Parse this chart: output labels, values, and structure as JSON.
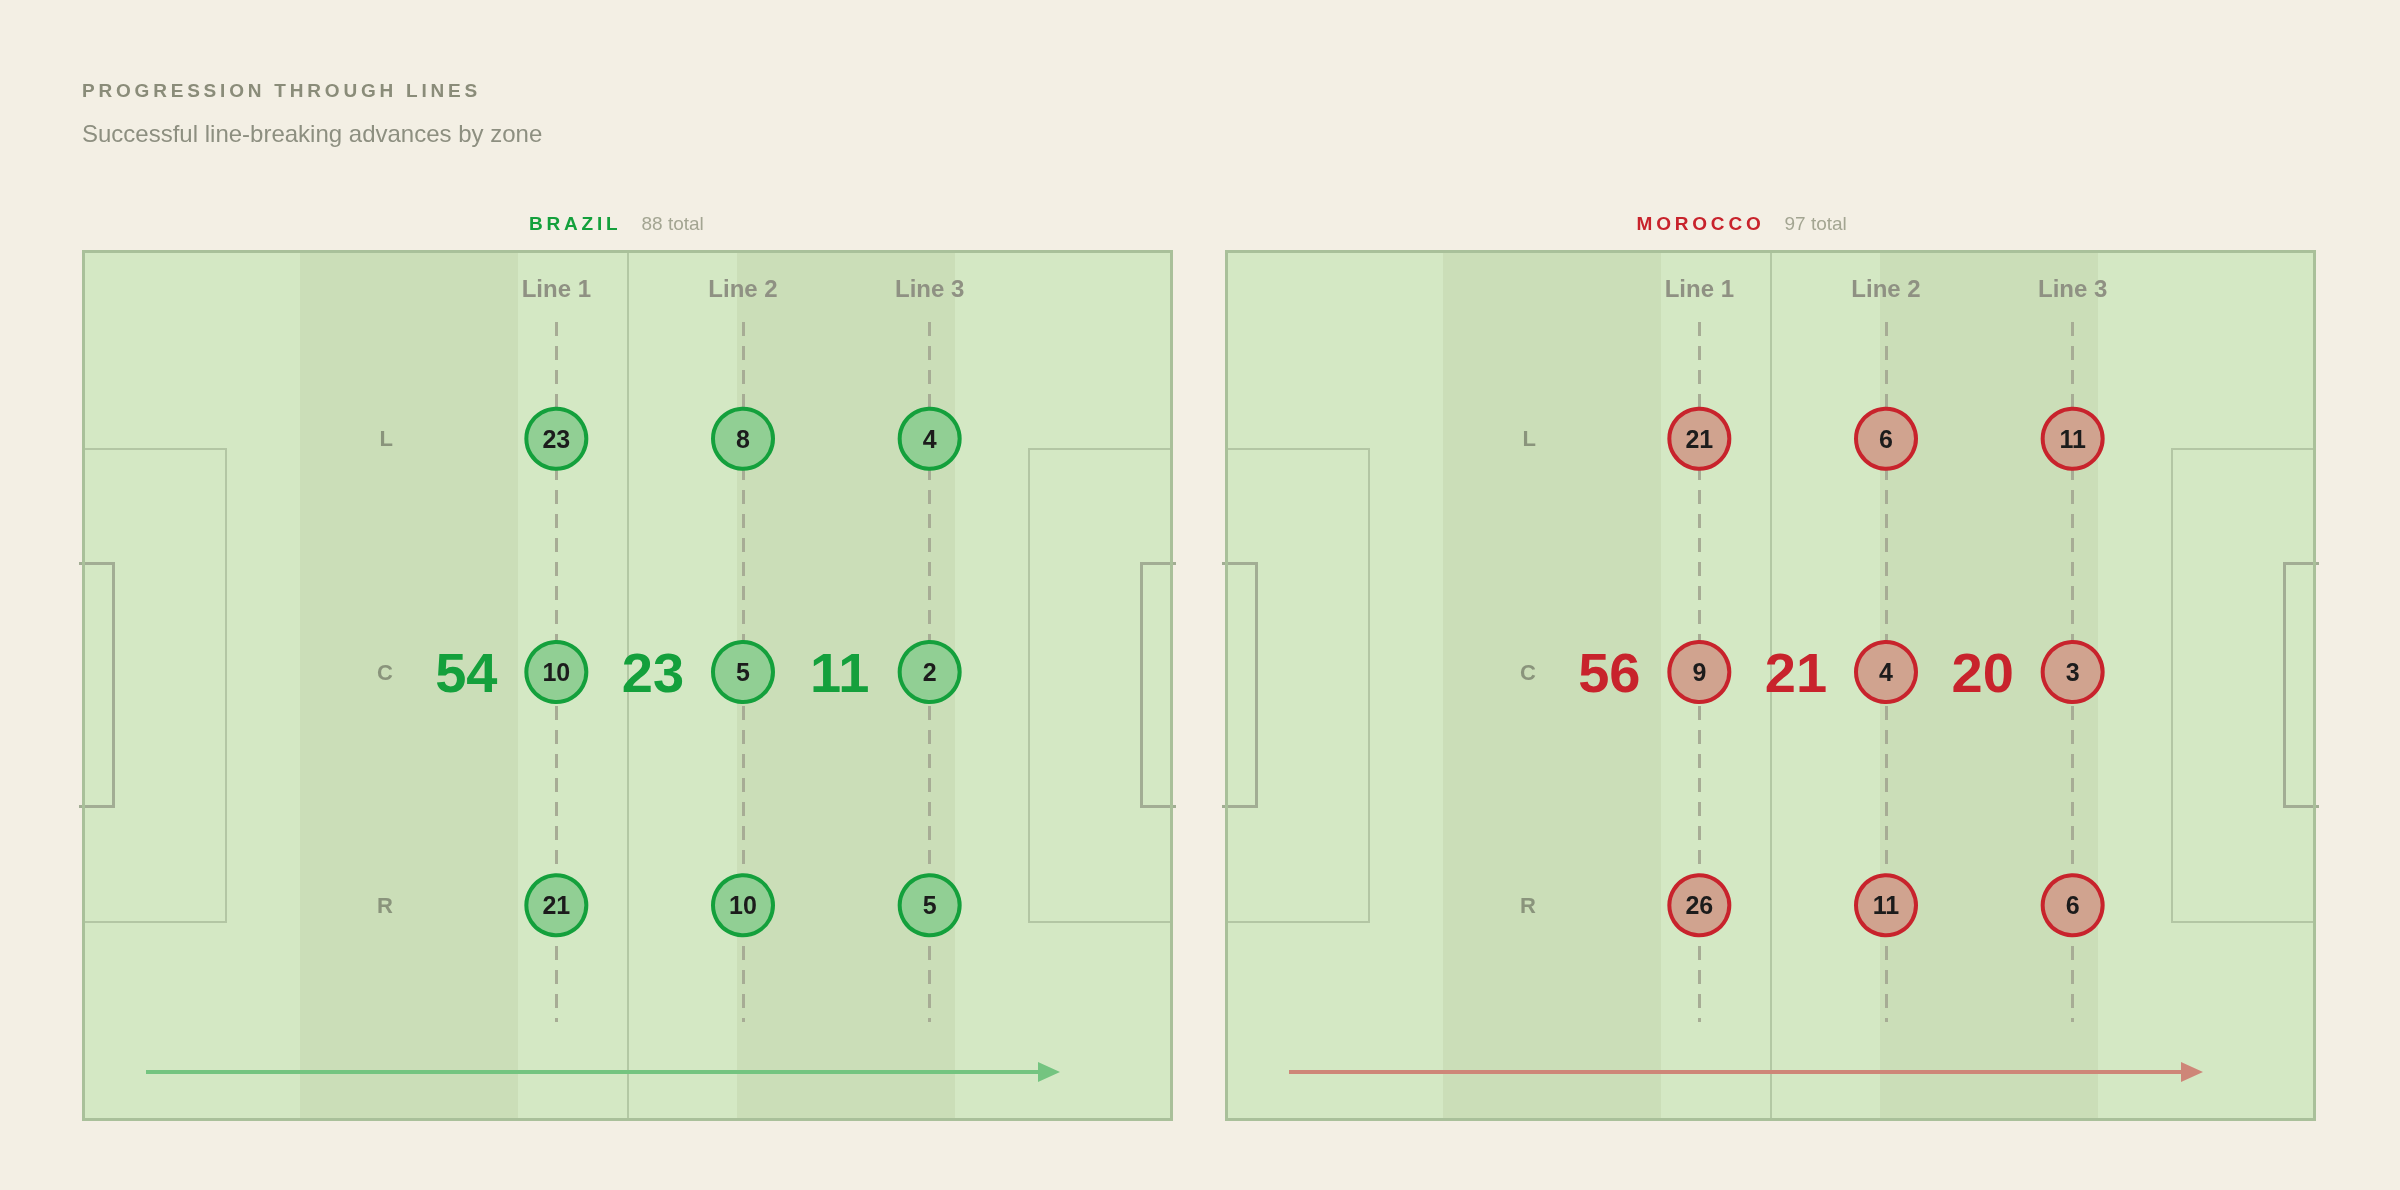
{
  "chart_data": [
    {
      "type": "other",
      "title": "PROGRESSION THROUGH LINES",
      "subtitle": "Successful line-breaking advances by zone"
    },
    {
      "type": "heatmap",
      "title": "BRAZIL",
      "subtitle": "88 total",
      "categories": [
        "Line 1",
        "Line 2",
        "Line 3"
      ],
      "y_categories": [
        "L",
        "C",
        "R"
      ],
      "cells": [
        [
          23,
          8,
          4
        ],
        [
          10,
          5,
          2
        ],
        [
          21,
          10,
          5
        ]
      ],
      "totals": [
        "54",
        "23",
        "11"
      ],
      "color": "#14a03c",
      "data_labels": true,
      "grid": "x"
    },
    {
      "type": "heatmap",
      "title": "MOROCCO",
      "subtitle": "97 total",
      "categories": [
        "Line 1",
        "Line 2",
        "Line 3"
      ],
      "y_categories": [
        "L",
        "C",
        "R"
      ],
      "cells": [
        [
          21,
          6,
          11
        ],
        [
          9,
          4,
          3
        ],
        [
          26,
          11,
          6
        ]
      ],
      "totals": [
        "56",
        "21",
        "20"
      ],
      "color": "#c8232c",
      "data_labels": true,
      "grid": "x"
    }
  ]
}
